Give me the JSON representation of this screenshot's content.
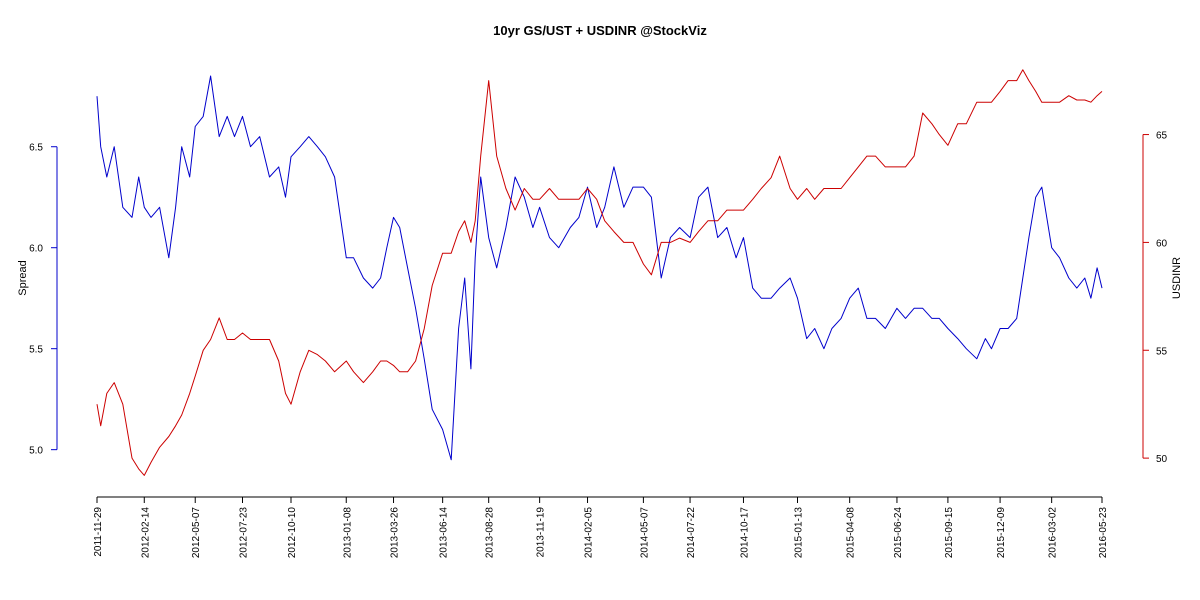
{
  "chart_data": {
    "type": "line",
    "title": "10yr GS/UST + USDINR @StockViz",
    "x_tick_labels": [
      "2011-11-29",
      "2012-02-14",
      "2012-05-07",
      "2012-07-23",
      "2012-10-10",
      "2013-01-08",
      "2013-03-26",
      "2013-06-14",
      "2013-08-28",
      "2013-11-19",
      "2014-02-05",
      "2014-05-07",
      "2014-07-22",
      "2014-10-17",
      "2015-01-13",
      "2015-04-08",
      "2015-06-24",
      "2015-09-15",
      "2015-12-09",
      "2016-03-02",
      "2016-05-23"
    ],
    "y_left": {
      "label": "Spread",
      "ticks": [
        "5.0",
        "5.5",
        "6.0",
        "6.5"
      ],
      "tick_values": [
        5.0,
        5.5,
        6.0,
        6.5
      ],
      "range": [
        4.83,
        6.87
      ],
      "color": "#0000cc"
    },
    "y_right": {
      "label": "USDINR",
      "ticks": [
        "50",
        "55",
        "60",
        "65"
      ],
      "tick_values": [
        50,
        55,
        60,
        65
      ],
      "range": [
        48.8,
        67.9
      ],
      "color": "#cc0000"
    },
    "series": [
      {
        "axis": "left",
        "color": "#0000cc",
        "x": [
          "2011-11-29",
          "2011-12-05",
          "2011-12-15",
          "2011-12-27",
          "2012-01-10",
          "2012-01-25",
          "2012-02-05",
          "2012-02-14",
          "2012-02-25",
          "2012-03-10",
          "2012-03-25",
          "2012-04-05",
          "2012-04-15",
          "2012-04-28",
          "2012-05-07",
          "2012-05-20",
          "2012-06-01",
          "2012-06-15",
          "2012-06-28",
          "2012-07-10",
          "2012-07-23",
          "2012-08-05",
          "2012-08-20",
          "2012-09-05",
          "2012-09-20",
          "2012-10-01",
          "2012-10-10",
          "2012-10-25",
          "2012-11-08",
          "2012-11-22",
          "2012-12-05",
          "2012-12-20",
          "2013-01-08",
          "2013-01-20",
          "2013-02-05",
          "2013-02-20",
          "2013-03-05",
          "2013-03-15",
          "2013-03-26",
          "2013-04-05",
          "2013-04-18",
          "2013-05-01",
          "2013-05-15",
          "2013-05-28",
          "2013-06-14",
          "2013-06-28",
          "2013-07-10",
          "2013-07-20",
          "2013-07-30",
          "2013-08-06",
          "2013-08-15",
          "2013-08-28",
          "2013-09-10",
          "2013-09-25",
          "2013-10-10",
          "2013-10-25",
          "2013-11-08",
          "2013-11-19",
          "2013-12-05",
          "2013-12-20",
          "2014-01-08",
          "2014-01-22",
          "2014-02-05",
          "2014-02-20",
          "2014-03-05",
          "2014-03-20",
          "2014-04-05",
          "2014-04-20",
          "2014-05-07",
          "2014-05-20",
          "2014-06-05",
          "2014-06-20",
          "2014-07-05",
          "2014-07-22",
          "2014-08-05",
          "2014-08-20",
          "2014-09-05",
          "2014-09-20",
          "2014-10-05",
          "2014-10-17",
          "2014-11-01",
          "2014-11-15",
          "2014-12-01",
          "2014-12-15",
          "2015-01-01",
          "2015-01-13",
          "2015-01-28",
          "2015-02-10",
          "2015-02-25",
          "2015-03-10",
          "2015-03-25",
          "2015-04-08",
          "2015-04-22",
          "2015-05-06",
          "2015-05-20",
          "2015-06-05",
          "2015-06-24",
          "2015-07-08",
          "2015-07-22",
          "2015-08-05",
          "2015-08-20",
          "2015-09-01",
          "2015-09-15",
          "2015-10-01",
          "2015-10-15",
          "2015-11-01",
          "2015-11-15",
          "2015-11-25",
          "2015-12-09",
          "2015-12-22",
          "2016-01-05",
          "2016-01-15",
          "2016-01-25",
          "2016-02-05",
          "2016-02-15",
          "2016-03-02",
          "2016-03-15",
          "2016-03-30",
          "2016-04-12",
          "2016-04-25",
          "2016-05-05",
          "2016-05-15",
          "2016-05-23"
        ],
        "y": [
          6.75,
          6.5,
          6.35,
          6.5,
          6.2,
          6.15,
          6.35,
          6.2,
          6.15,
          6.2,
          5.95,
          6.2,
          6.5,
          6.35,
          6.6,
          6.65,
          6.85,
          6.55,
          6.65,
          6.55,
          6.65,
          6.5,
          6.55,
          6.35,
          6.4,
          6.25,
          6.45,
          6.5,
          6.55,
          6.5,
          6.45,
          6.35,
          5.95,
          5.95,
          5.85,
          5.8,
          5.85,
          6.0,
          6.15,
          6.1,
          5.9,
          5.7,
          5.45,
          5.2,
          5.1,
          4.95,
          5.6,
          5.85,
          5.4,
          5.95,
          6.35,
          6.05,
          5.9,
          6.1,
          6.35,
          6.25,
          6.1,
          6.2,
          6.05,
          6.0,
          6.1,
          6.15,
          6.3,
          6.1,
          6.2,
          6.4,
          6.2,
          6.3,
          6.3,
          6.25,
          5.85,
          6.05,
          6.1,
          6.05,
          6.25,
          6.3,
          6.05,
          6.1,
          5.95,
          6.05,
          5.8,
          5.75,
          5.75,
          5.8,
          5.85,
          5.75,
          5.55,
          5.6,
          5.5,
          5.6,
          5.65,
          5.75,
          5.8,
          5.65,
          5.65,
          5.6,
          5.7,
          5.65,
          5.7,
          5.7,
          5.65,
          5.65,
          5.6,
          5.55,
          5.5,
          5.45,
          5.55,
          5.5,
          5.6,
          5.6,
          5.65,
          5.85,
          6.05,
          6.25,
          6.3,
          6.0,
          5.95,
          5.85,
          5.8,
          5.85,
          5.75,
          5.9,
          5.8
        ]
      },
      {
        "axis": "right",
        "color": "#cc0000",
        "x": [
          "2011-11-29",
          "2011-12-05",
          "2011-12-15",
          "2011-12-27",
          "2012-01-10",
          "2012-01-25",
          "2012-02-05",
          "2012-02-14",
          "2012-02-25",
          "2012-03-10",
          "2012-03-25",
          "2012-04-05",
          "2012-04-15",
          "2012-04-28",
          "2012-05-07",
          "2012-05-20",
          "2012-06-01",
          "2012-06-15",
          "2012-06-28",
          "2012-07-10",
          "2012-07-23",
          "2012-08-05",
          "2012-08-20",
          "2012-09-05",
          "2012-09-20",
          "2012-10-01",
          "2012-10-10",
          "2012-10-25",
          "2012-11-08",
          "2012-11-22",
          "2012-12-05",
          "2012-12-20",
          "2013-01-08",
          "2013-01-20",
          "2013-02-05",
          "2013-02-20",
          "2013-03-05",
          "2013-03-15",
          "2013-03-26",
          "2013-04-05",
          "2013-04-18",
          "2013-05-01",
          "2013-05-15",
          "2013-05-28",
          "2013-06-14",
          "2013-06-28",
          "2013-07-10",
          "2013-07-20",
          "2013-07-30",
          "2013-08-06",
          "2013-08-15",
          "2013-08-28",
          "2013-09-10",
          "2013-09-25",
          "2013-10-10",
          "2013-10-25",
          "2013-11-08",
          "2013-11-19",
          "2013-12-05",
          "2013-12-20",
          "2014-01-08",
          "2014-01-22",
          "2014-02-05",
          "2014-02-20",
          "2014-03-05",
          "2014-03-20",
          "2014-04-05",
          "2014-04-20",
          "2014-05-07",
          "2014-05-20",
          "2014-06-05",
          "2014-06-20",
          "2014-07-05",
          "2014-07-22",
          "2014-08-05",
          "2014-08-20",
          "2014-09-05",
          "2014-09-20",
          "2014-10-05",
          "2014-10-17",
          "2014-11-01",
          "2014-11-15",
          "2014-12-01",
          "2014-12-15",
          "2015-01-01",
          "2015-01-13",
          "2015-01-28",
          "2015-02-10",
          "2015-02-25",
          "2015-03-10",
          "2015-03-25",
          "2015-04-08",
          "2015-04-22",
          "2015-05-06",
          "2015-05-20",
          "2015-06-05",
          "2015-06-24",
          "2015-07-08",
          "2015-07-22",
          "2015-08-05",
          "2015-08-20",
          "2015-09-01",
          "2015-09-15",
          "2015-10-01",
          "2015-10-15",
          "2015-11-01",
          "2015-11-15",
          "2015-11-25",
          "2015-12-09",
          "2015-12-22",
          "2016-01-05",
          "2016-01-15",
          "2016-01-25",
          "2016-02-05",
          "2016-02-15",
          "2016-03-02",
          "2016-03-15",
          "2016-03-30",
          "2016-04-12",
          "2016-04-25",
          "2016-05-05",
          "2016-05-15",
          "2016-05-23"
        ],
        "y": [
          52.5,
          51.5,
          53.0,
          53.5,
          52.5,
          50.0,
          49.5,
          49.2,
          49.8,
          50.5,
          51.0,
          51.5,
          52.0,
          53.0,
          53.8,
          55.0,
          55.5,
          56.5,
          55.5,
          55.5,
          55.8,
          55.5,
          55.5,
          55.5,
          54.5,
          53.0,
          52.5,
          54.0,
          55.0,
          54.8,
          54.5,
          54.0,
          54.5,
          54.0,
          53.5,
          54.0,
          54.5,
          54.5,
          54.3,
          54.0,
          54.0,
          54.5,
          56.0,
          58.0,
          59.5,
          59.5,
          60.5,
          61.0,
          60.0,
          61.0,
          64.0,
          67.5,
          64.0,
          62.5,
          61.5,
          62.5,
          62.0,
          62.0,
          62.5,
          62.0,
          62.0,
          62.0,
          62.5,
          62.0,
          61.0,
          60.5,
          60.0,
          60.0,
          59.0,
          58.5,
          60.0,
          60.0,
          60.2,
          60.0,
          60.5,
          61.0,
          61.0,
          61.5,
          61.5,
          61.5,
          62.0,
          62.5,
          63.0,
          64.0,
          62.5,
          62.0,
          62.5,
          62.0,
          62.5,
          62.5,
          62.5,
          63.0,
          63.5,
          64.0,
          64.0,
          63.5,
          63.5,
          63.5,
          64.0,
          66.0,
          65.5,
          65.0,
          64.5,
          65.5,
          65.5,
          66.5,
          66.5,
          66.5,
          67.0,
          67.5,
          67.5,
          68.0,
          67.5,
          67.0,
          66.5,
          66.5,
          66.5,
          66.8,
          66.6,
          66.6,
          66.5,
          66.8,
          67.0
        ]
      }
    ]
  }
}
